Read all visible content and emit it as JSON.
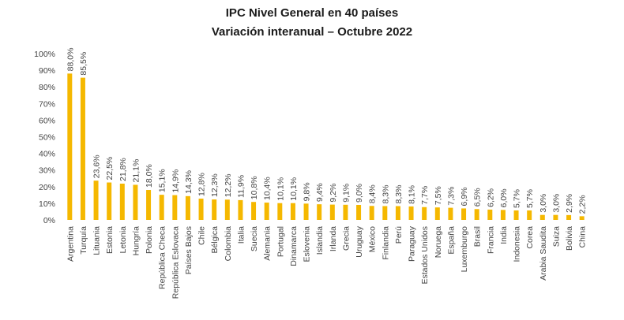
{
  "chart_data": {
    "type": "bar",
    "title": "IPC Nivel General en 40 países",
    "subtitle": "Variación interanual – Octubre 2022",
    "xlabel": "",
    "ylabel": "",
    "ylim": [
      0,
      100
    ],
    "yticks": [
      "0%",
      "10%",
      "20%",
      "30%",
      "40%",
      "50%",
      "60%",
      "70%",
      "80%",
      "90%",
      "100%"
    ],
    "grid": false,
    "bar_color": "#f5b800",
    "categories": [
      "Argentina",
      "Turquía",
      "Lituania",
      "Estonia",
      "Letonia",
      "Hungría",
      "Polonia",
      "República Checa",
      "República Eslovaca",
      "Países Bajos",
      "Chile",
      "Bélgica",
      "Colombia",
      "Italia",
      "Suecia",
      "Alemania",
      "Portugal",
      "Dinamarca",
      "Eslovenia",
      "Islandia",
      "Irlanda",
      "Grecia",
      "Uruguay",
      "México",
      "Finlandia",
      "Perú",
      "Paraguay",
      "Estados Unidos",
      "Noruega",
      "España",
      "Luxemburgo",
      "Brasil",
      "Francia",
      "India",
      "Indonesia",
      "Corea",
      "Arabia Saudita",
      "Suiza",
      "Bolivia",
      "China"
    ],
    "values": [
      88.0,
      85.5,
      23.6,
      22.5,
      21.8,
      21.1,
      18.0,
      15.1,
      14.9,
      14.3,
      12.8,
      12.3,
      12.2,
      11.9,
      10.8,
      10.4,
      10.1,
      10.1,
      9.8,
      9.4,
      9.2,
      9.1,
      9.0,
      8.4,
      8.3,
      8.3,
      8.1,
      7.7,
      7.5,
      7.3,
      6.9,
      6.5,
      6.2,
      6.0,
      5.7,
      5.7,
      3.0,
      3.0,
      2.9,
      2.2
    ],
    "value_labels": [
      "88,0%",
      "85,5%",
      "23,6%",
      "22,5%",
      "21,8%",
      "21,1%",
      "18,0%",
      "15,1%",
      "14,9%",
      "14,3%",
      "12,8%",
      "12,3%",
      "12,2%",
      "11,9%",
      "10,8%",
      "10,4%",
      "10,1%",
      "10,1%",
      "9,8%",
      "9,4%",
      "9,2%",
      "9,1%",
      "9,0%",
      "8,4%",
      "8,3%",
      "8,3%",
      "8,1%",
      "7,7%",
      "7,5%",
      "7,3%",
      "6,9%",
      "6,5%",
      "6,2%",
      "6,0%",
      "5,7%",
      "5,7%",
      "3,0%",
      "3,0%",
      "2,9%",
      "2,2%"
    ]
  }
}
